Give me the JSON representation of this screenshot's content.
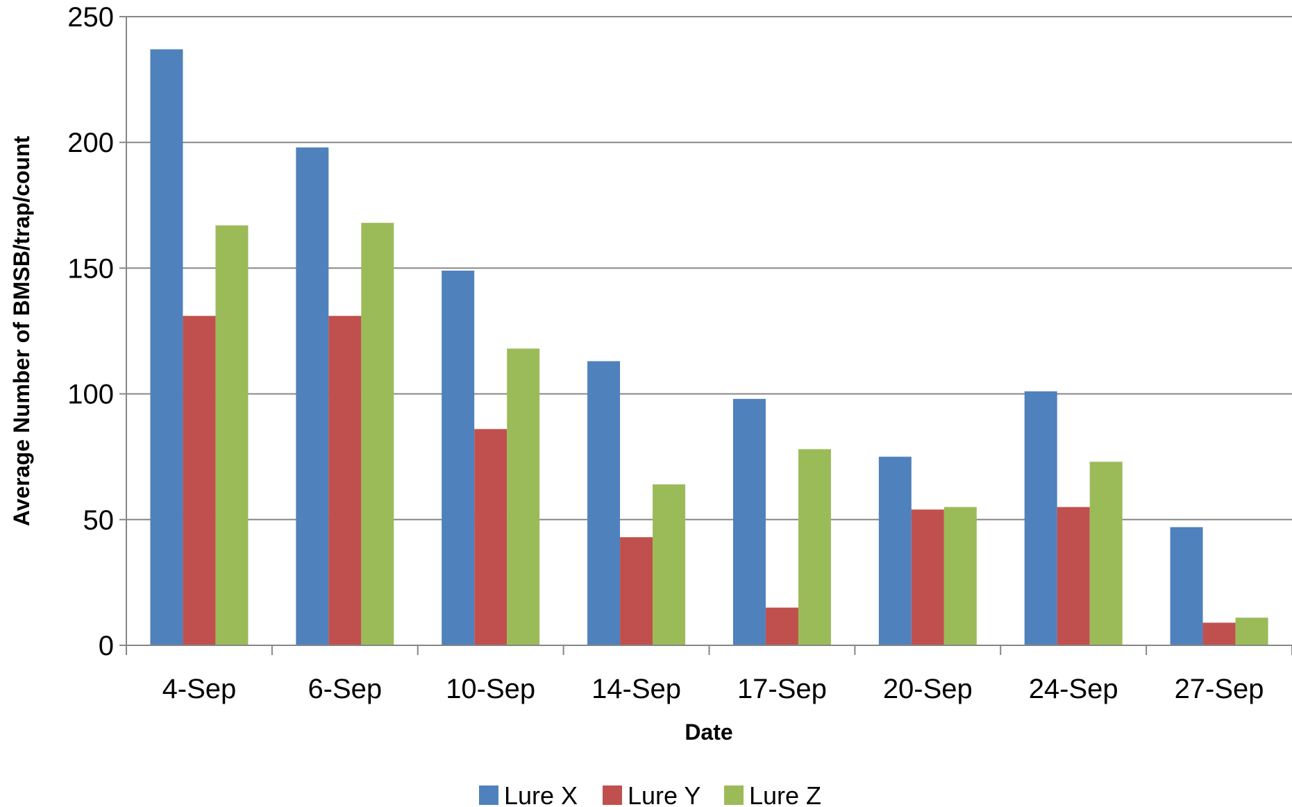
{
  "chart_data": {
    "type": "bar",
    "title": "",
    "xlabel": "Date",
    "ylabel": "Average Number of BMSB/trap/count",
    "categories": [
      "4-Sep",
      "6-Sep",
      "10-Sep",
      "14-Sep",
      "17-Sep",
      "20-Sep",
      "24-Sep",
      "27-Sep"
    ],
    "ylim": [
      0,
      250
    ],
    "yticks": [
      0,
      50,
      100,
      150,
      200,
      250
    ],
    "grid": true,
    "legend_position": "bottom",
    "series": [
      {
        "name": "Lure X",
        "color": "#4F81BD",
        "values": [
          237,
          198,
          149,
          113,
          98,
          75,
          101,
          47
        ]
      },
      {
        "name": "Lure Y",
        "color": "#C0504D",
        "values": [
          131,
          131,
          86,
          43,
          15,
          54,
          55,
          9
        ]
      },
      {
        "name": "Lure Z",
        "color": "#9BBB59",
        "values": [
          167,
          168,
          118,
          64,
          78,
          55,
          73,
          11
        ]
      }
    ]
  }
}
